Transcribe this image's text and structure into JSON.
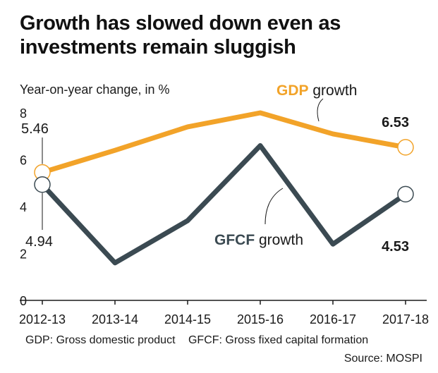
{
  "title_line1": "Growth has slowed down even as",
  "title_line2": "investments remain sluggish",
  "footer": {
    "gdp_note": "GDP: Gross domestic product",
    "gfcf_note": "GFCF: Gross fixed capital formation",
    "source": "Source: MOSPI"
  },
  "chart_data": {
    "type": "line",
    "title": "Growth has slowed down even as investments remain sluggish",
    "ylabel": "Year-on-year change, in %",
    "xlabel": "",
    "categories": [
      "2012-13",
      "2013-14",
      "2014-15",
      "2015-16",
      "2016-17",
      "2017-18"
    ],
    "ylim": [
      0,
      8
    ],
    "yticks": [
      0,
      2,
      4,
      6,
      8
    ],
    "grid": false,
    "series": [
      {
        "name": "GDP",
        "name_suffix": "growth",
        "color": "#f2a329",
        "values": [
          5.46,
          6.4,
          7.4,
          8.0,
          7.1,
          6.53
        ],
        "labels": {
          "first": "5.46",
          "last": "6.53"
        }
      },
      {
        "name": "GFCF",
        "name_suffix": "growth",
        "color": "#3b4a52",
        "values": [
          4.94,
          1.6,
          3.4,
          6.6,
          2.4,
          4.53
        ],
        "labels": {
          "first": "4.94",
          "last": "4.53"
        }
      }
    ]
  }
}
